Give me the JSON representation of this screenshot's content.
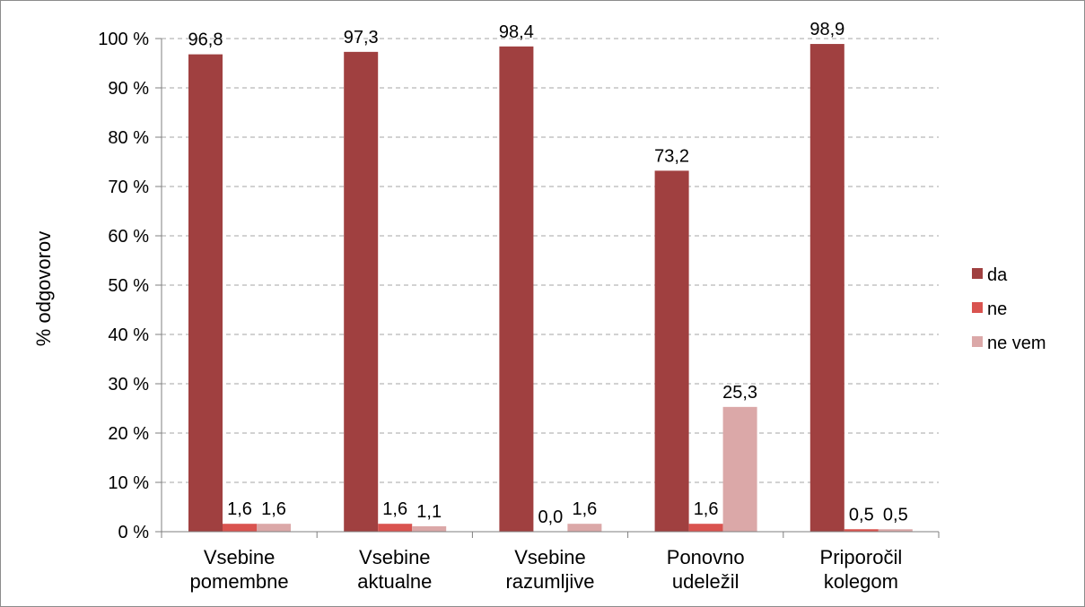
{
  "chart_data": {
    "type": "bar",
    "title": "",
    "xlabel": "",
    "ylabel": "% odgovorov",
    "ylim": [
      0,
      100
    ],
    "yticks": [
      0,
      10,
      20,
      30,
      40,
      50,
      60,
      70,
      80,
      90,
      100
    ],
    "ytick_labels": [
      "0 %",
      "10 %",
      "20 %",
      "30 %",
      "40 %",
      "50 %",
      "60 %",
      "70 %",
      "80 %",
      "90 %",
      "100 %"
    ],
    "grid": true,
    "legend_position": "right",
    "categories": [
      [
        "Vsebine",
        "pomembne"
      ],
      [
        "Vsebine",
        "aktualne"
      ],
      [
        "Vsebine",
        "razumljive"
      ],
      [
        "Ponovno",
        "udeležil"
      ],
      [
        "Priporočil",
        "kolegom"
      ]
    ],
    "series": [
      {
        "name": "da",
        "color": "#a04040",
        "values": [
          96.8,
          97.3,
          98.4,
          73.2,
          98.9
        ],
        "labels": [
          "96,8",
          "97,3",
          "98,4",
          "73,2",
          "98,9"
        ]
      },
      {
        "name": "ne",
        "color": "#d9534f",
        "values": [
          1.6,
          1.6,
          0.0,
          1.6,
          0.5
        ],
        "labels": [
          "1,6",
          "1,6",
          "0,0",
          "1,6",
          "0,5"
        ]
      },
      {
        "name": "ne vem",
        "color": "#dba8a8",
        "values": [
          1.6,
          1.1,
          1.6,
          25.3,
          0.5
        ],
        "labels": [
          "1,6",
          "1,1",
          "1,6",
          "25,3",
          "0,5"
        ]
      }
    ]
  }
}
